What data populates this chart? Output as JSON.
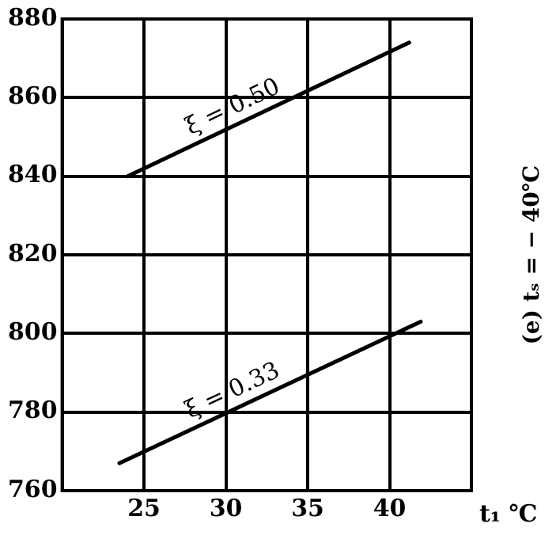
{
  "chart_data": {
    "type": "line",
    "title": "(e) tₛ = − 40℃",
    "xlabel": "t₁ ℃",
    "xlim": [
      20,
      45
    ],
    "xticks": [
      25,
      30,
      35,
      40
    ],
    "ylim": [
      760,
      880
    ],
    "yticks": [
      760,
      780,
      800,
      820,
      840,
      860,
      880
    ],
    "grid": true,
    "marker": "none",
    "line_style": "solid",
    "series": [
      {
        "name": "ξ = 0.50",
        "color": "#000000",
        "x": [
          24,
          41.2
        ],
        "values": [
          840,
          874
        ]
      },
      {
        "name": "ξ = 0.33",
        "color": "#000000",
        "x": [
          23.5,
          41.9
        ],
        "values": [
          767,
          803
        ]
      }
    ]
  }
}
